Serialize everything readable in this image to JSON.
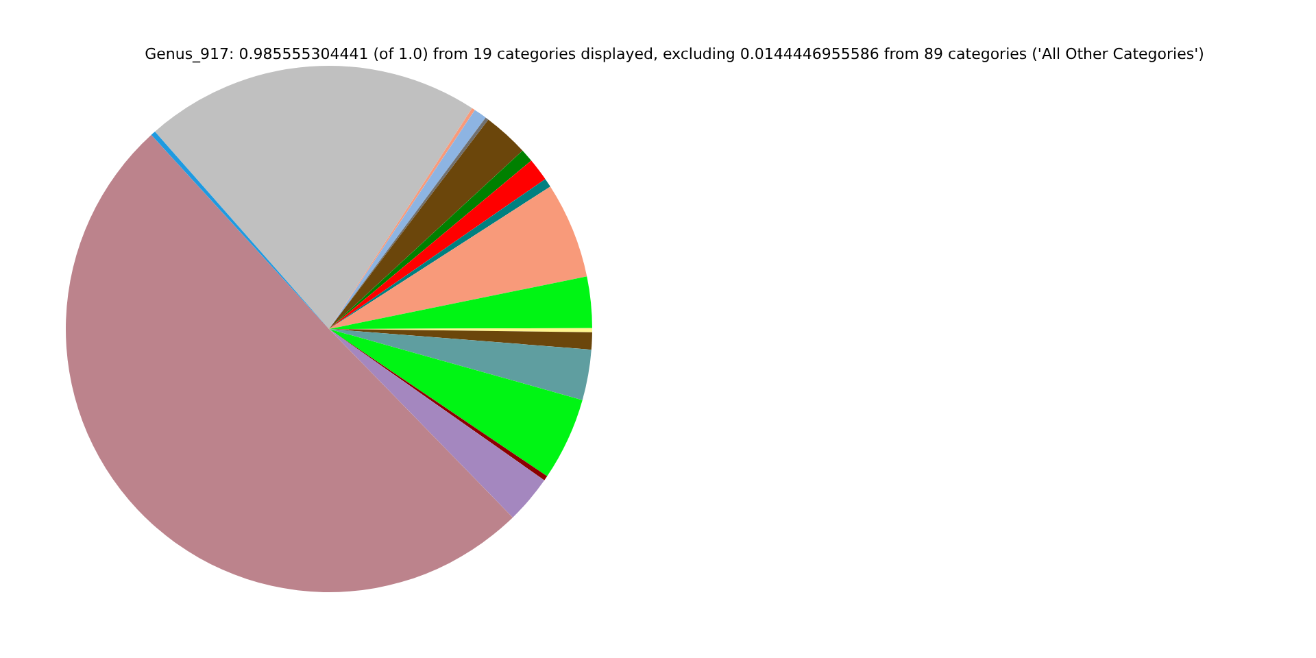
{
  "chart_data": {
    "type": "pie",
    "title": "Genus_917: 0.985555304441 (of 1.0) from 19 categories displayed, excluding 0.0144446955586 from 89 categories ('All Other Categories')",
    "categories": [
      null,
      null,
      null,
      null,
      null,
      null,
      null,
      null,
      null,
      null,
      null,
      null,
      null,
      null,
      null,
      null,
      null,
      null
    ],
    "values": [
      20.65,
      0.2,
      0.8,
      0.2,
      2.8,
      0.8,
      1.4,
      0.55,
      5.9,
      3.15,
      0.25,
      1.05,
      3.1,
      5.1,
      0.3,
      2.95,
      50.5,
      0.3
    ],
    "colors": [
      "#c0c0c0",
      "#f89a7a",
      "#8db4e2",
      "#707070",
      "#6b460b",
      "#008000",
      "#ff0000",
      "#008080",
      "#f89a7a",
      "#00f514",
      "#fff68f",
      "#6b460b",
      "#5f9ea0",
      "#00f514",
      "#8b0000",
      "#a487bf",
      "#bc838c",
      "#1f9ae0"
    ],
    "legend": false
  }
}
